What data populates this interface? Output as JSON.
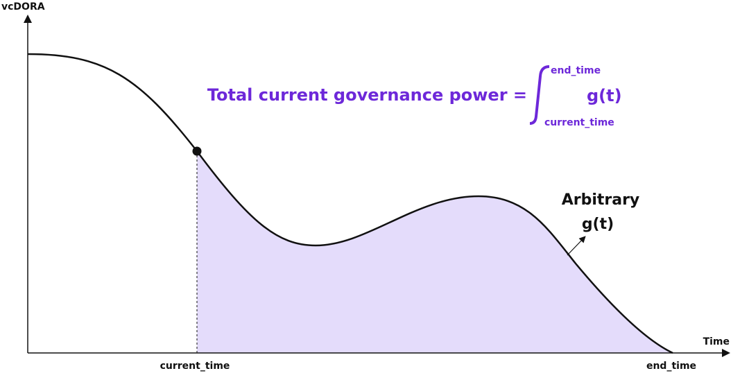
{
  "axes": {
    "y_label": "vcDORA",
    "x_label": "Time",
    "x_ticks": [
      "current_time",
      "end_time"
    ]
  },
  "formula": {
    "text": "Total current governance power =",
    "upper": "end_time",
    "lower": "current_time",
    "integrand": "g(t)"
  },
  "curve_label": [
    "Arbitrary",
    "g(t)"
  ]
}
